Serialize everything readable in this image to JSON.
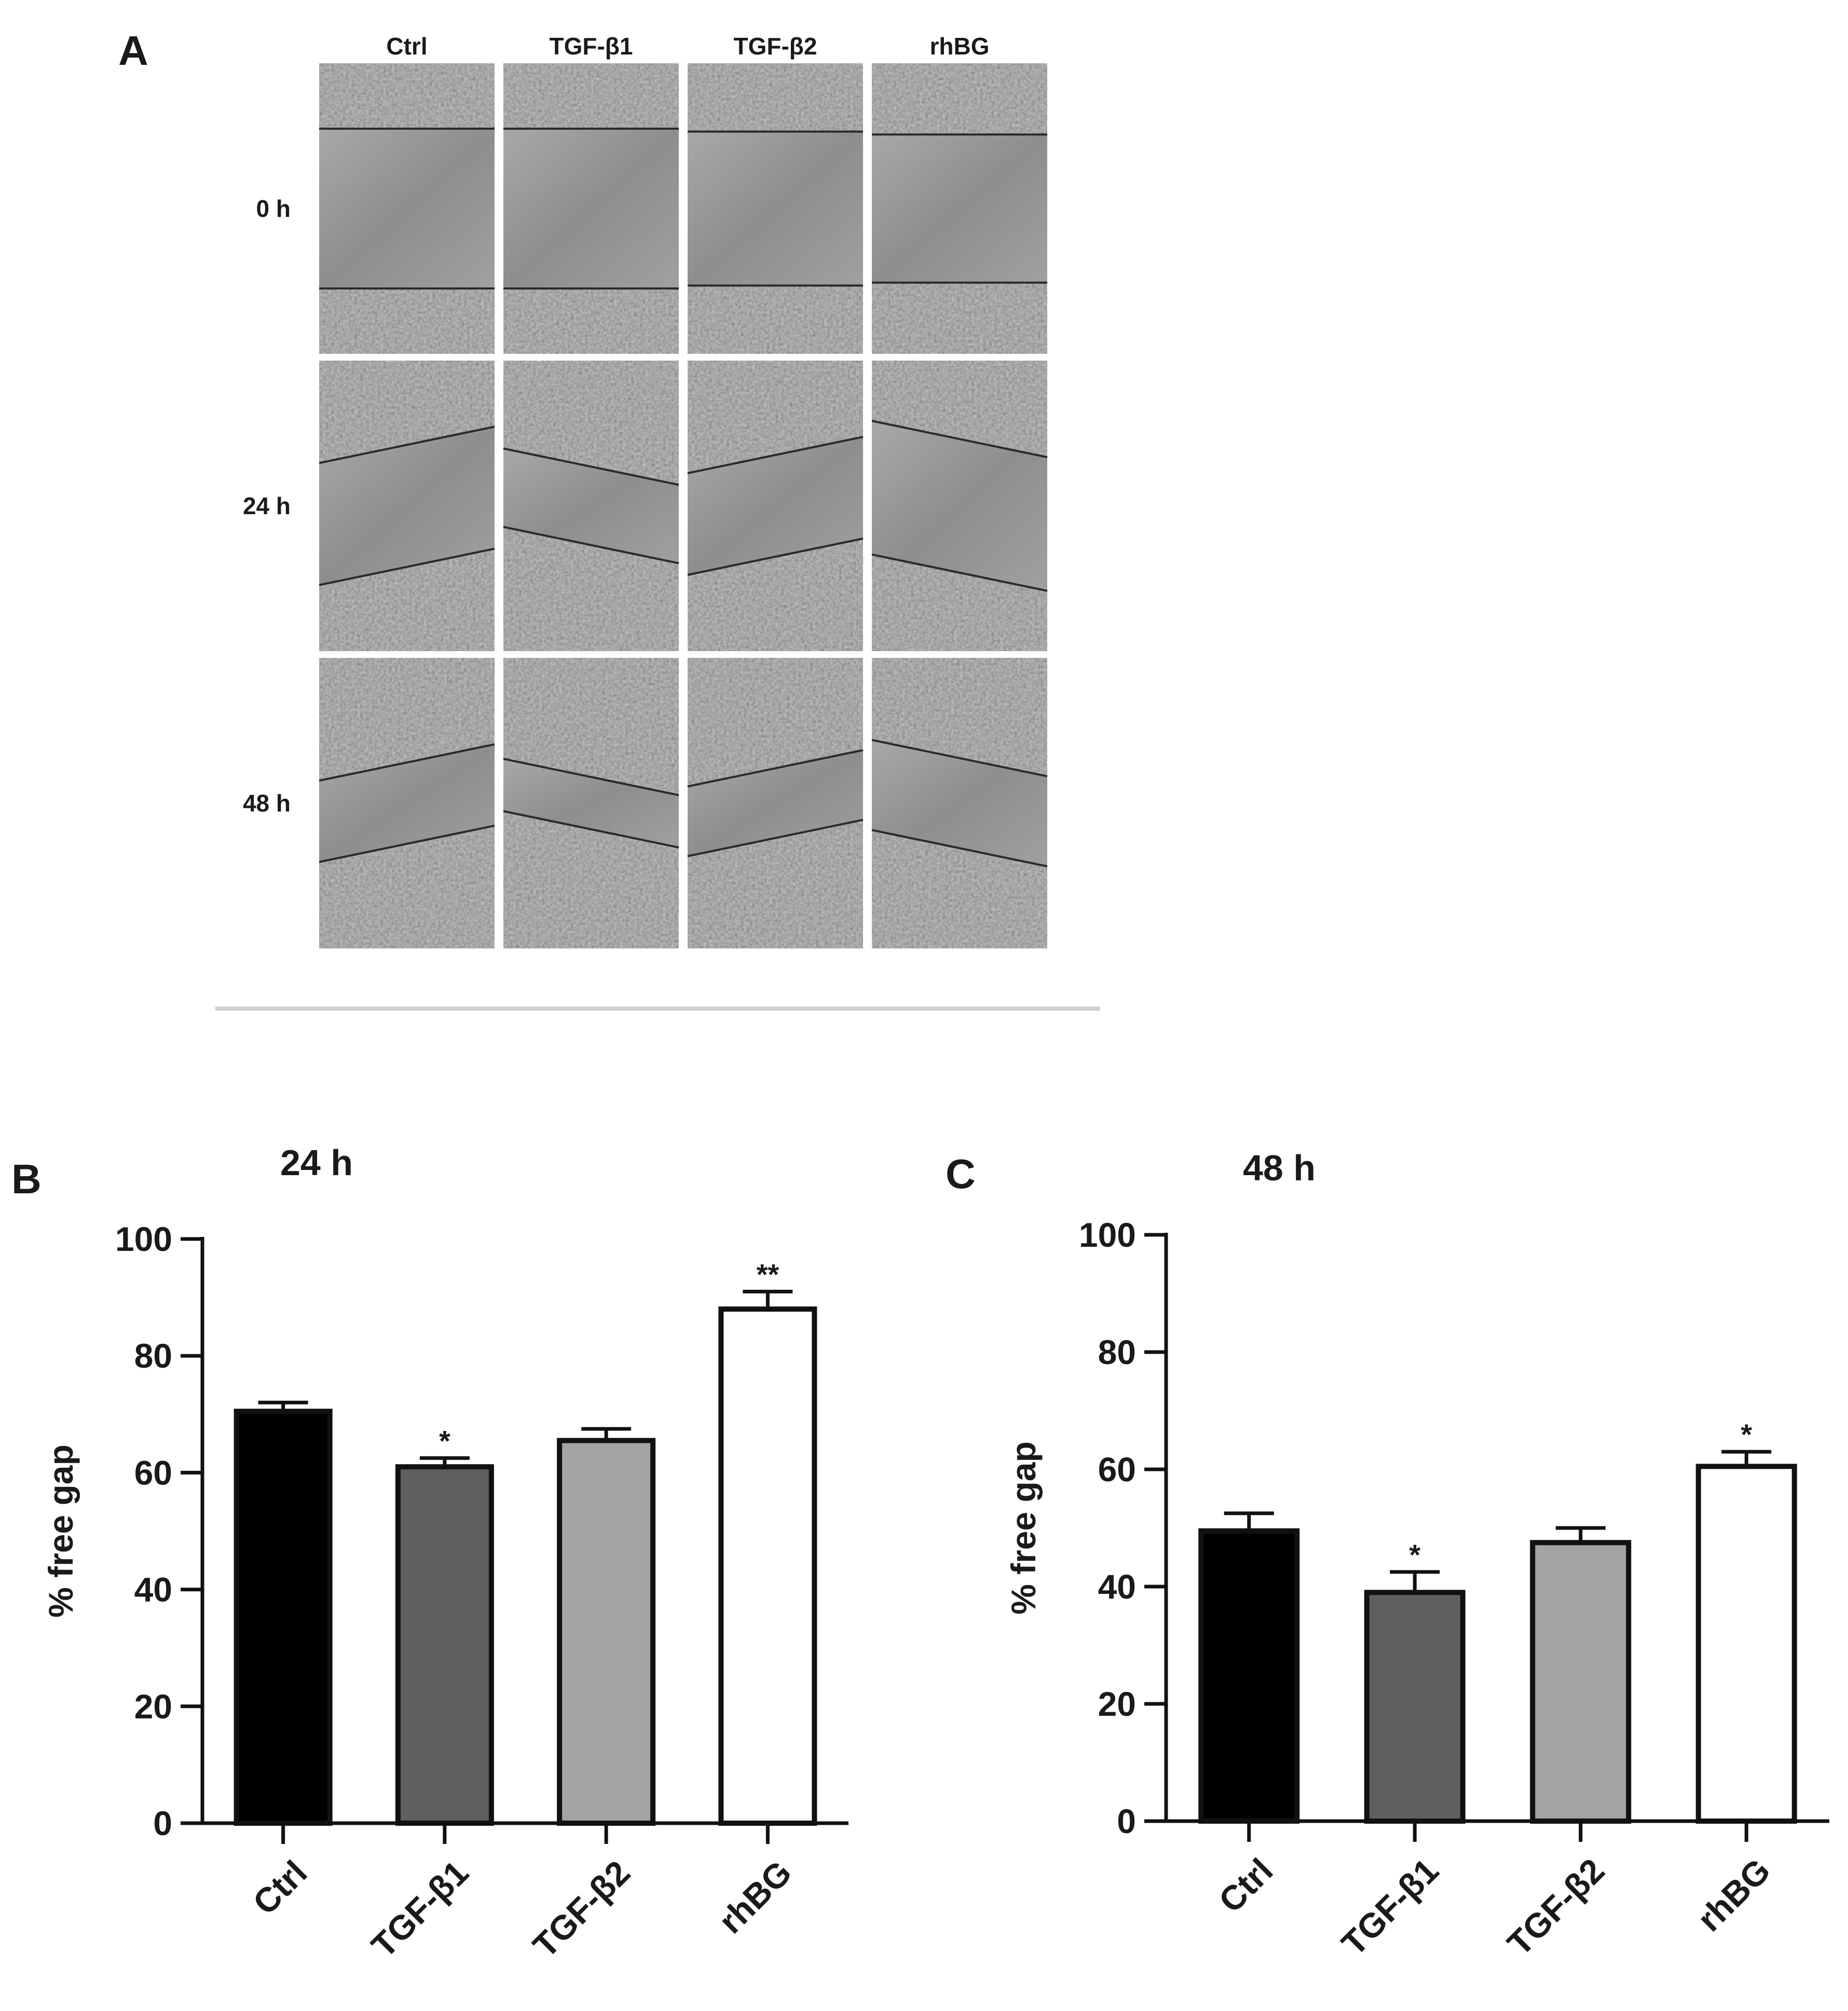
{
  "panel_a": {
    "letter": "A",
    "columns": [
      "Ctrl",
      "TGF-β1",
      "TGF-β2",
      "rhBG"
    ],
    "rows": [
      "0 h",
      "24 h",
      "48 h"
    ],
    "gap_fraction": [
      [
        0.55,
        0.55,
        0.53,
        0.51
      ],
      [
        0.42,
        0.27,
        0.35,
        0.46
      ],
      [
        0.28,
        0.18,
        0.24,
        0.31
      ]
    ],
    "image_tone": "#8c8c8c"
  },
  "chart_data": [
    {
      "panel": "B",
      "type": "bar",
      "title": "24 h",
      "xlabel": "",
      "ylabel": "% free gap",
      "ylim": [
        0,
        100
      ],
      "yticks": [
        0,
        20,
        40,
        60,
        80,
        100
      ],
      "categories": [
        "Ctrl",
        "TGF-β1",
        "TGF-β2",
        "rhBG"
      ],
      "values": [
        70.5,
        61,
        65.5,
        88
      ],
      "errors": [
        1.5,
        1.5,
        2,
        3
      ],
      "significance": [
        "",
        "*",
        "",
        "**"
      ],
      "colors": [
        "#000000",
        "#5f5f5f",
        "#a3a3a6",
        "#ffffff"
      ],
      "grid": false
    },
    {
      "panel": "C",
      "type": "bar",
      "title": "48 h",
      "xlabel": "",
      "ylabel": "% free gap",
      "ylim": [
        0,
        100
      ],
      "yticks": [
        0,
        20,
        40,
        60,
        80,
        100
      ],
      "categories": [
        "Ctrl",
        "TGF-β1",
        "TGF-β2",
        "rhBG"
      ],
      "values": [
        49.5,
        39,
        47.5,
        60.5
      ],
      "errors": [
        3,
        3.5,
        2.5,
        2.5
      ],
      "significance": [
        "",
        "*",
        "",
        "*"
      ],
      "colors": [
        "#000000",
        "#5f5f5f",
        "#a3a3a6",
        "#ffffff"
      ],
      "grid": false
    }
  ]
}
